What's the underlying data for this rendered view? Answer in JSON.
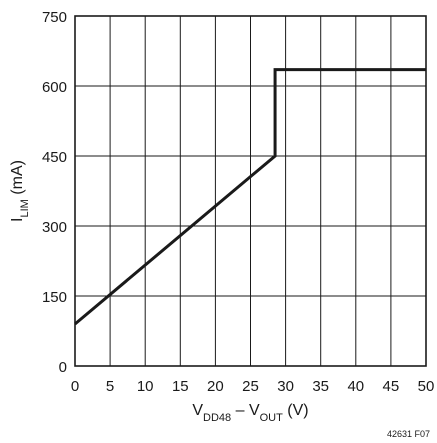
{
  "chart_data": {
    "type": "line",
    "title": "",
    "xlabel": {
      "parts": [
        {
          "text": "V",
          "sub": false
        },
        {
          "text": "DD48",
          "sub": true
        },
        {
          "text": " – V",
          "sub": false
        },
        {
          "text": "OUT",
          "sub": true
        },
        {
          "text": " (V)",
          "sub": false
        }
      ]
    },
    "ylabel": {
      "parts": [
        {
          "text": "I",
          "sub": false
        },
        {
          "text": "LIM",
          "sub": true
        },
        {
          "text": " (mA)",
          "sub": false
        }
      ]
    },
    "xlim": [
      0,
      50
    ],
    "ylim": [
      0,
      750
    ],
    "xticks": [
      0,
      5,
      10,
      15,
      20,
      25,
      30,
      35,
      40,
      45,
      50
    ],
    "yticks": [
      0,
      150,
      300,
      450,
      600,
      750
    ],
    "grid": true,
    "series": [
      {
        "x": [
          0,
          28.5,
          28.5,
          50
        ],
        "y": [
          90,
          450,
          635,
          635
        ]
      }
    ],
    "figure_id": "42631 F07"
  }
}
